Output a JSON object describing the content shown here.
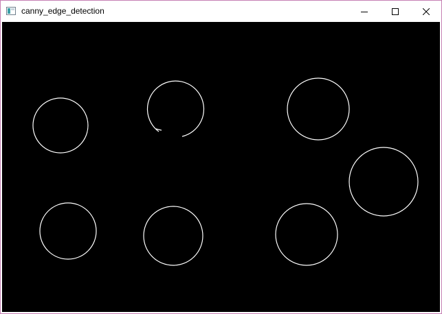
{
  "window": {
    "title": "canny_edge_detection",
    "app_icon": "opencv-window-icon",
    "controls": {
      "minimize_icon": "minimize-icon",
      "maximize_icon": "maximize-icon",
      "close_icon": "close-icon"
    }
  },
  "image": {
    "background_color": "#000000",
    "edge_color": "#ffffff",
    "content": "edge-outlines-of-seven-circles"
  }
}
